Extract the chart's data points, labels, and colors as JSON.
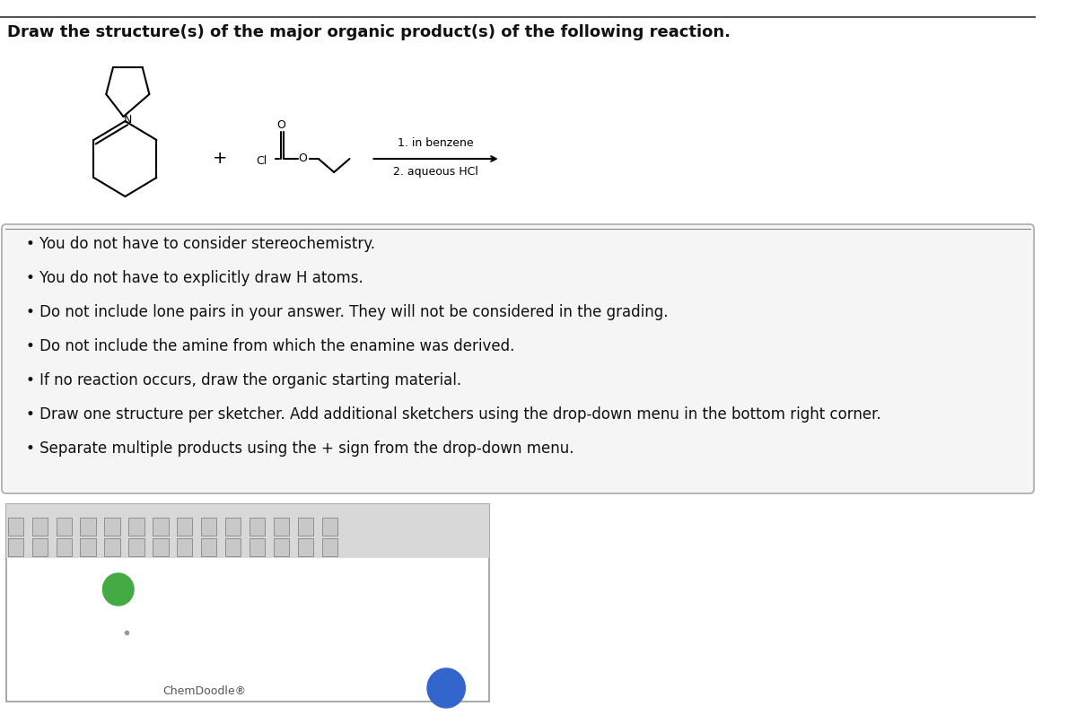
{
  "title": "Draw the structure(s) of the major organic product(s) of the following reaction.",
  "reaction_conditions": [
    "1. in benzene",
    "2. aqueous HCl"
  ],
  "bullet_points": [
    "You do not have to consider stereochemistry.",
    "You do not have to explicitly draw H atoms.",
    "Do not include lone pairs in your answer. They will not be considered in the grading.",
    "Do not include the amine from which the enamine was derived.",
    "If no reaction occurs, draw the organic starting material.",
    "Draw one structure per sketcher. Add additional sketchers using the drop-down menu in the bottom right corner.",
    "Separate multiple products using the + sign from the drop-down menu."
  ],
  "bg_color": "#ffffff",
  "box_bg_color": "#f5f5f5",
  "title_fontsize": 13,
  "bullet_fontsize": 12,
  "sketch_box_color": "#cccccc",
  "toolbar_color": "#e8e8e8"
}
